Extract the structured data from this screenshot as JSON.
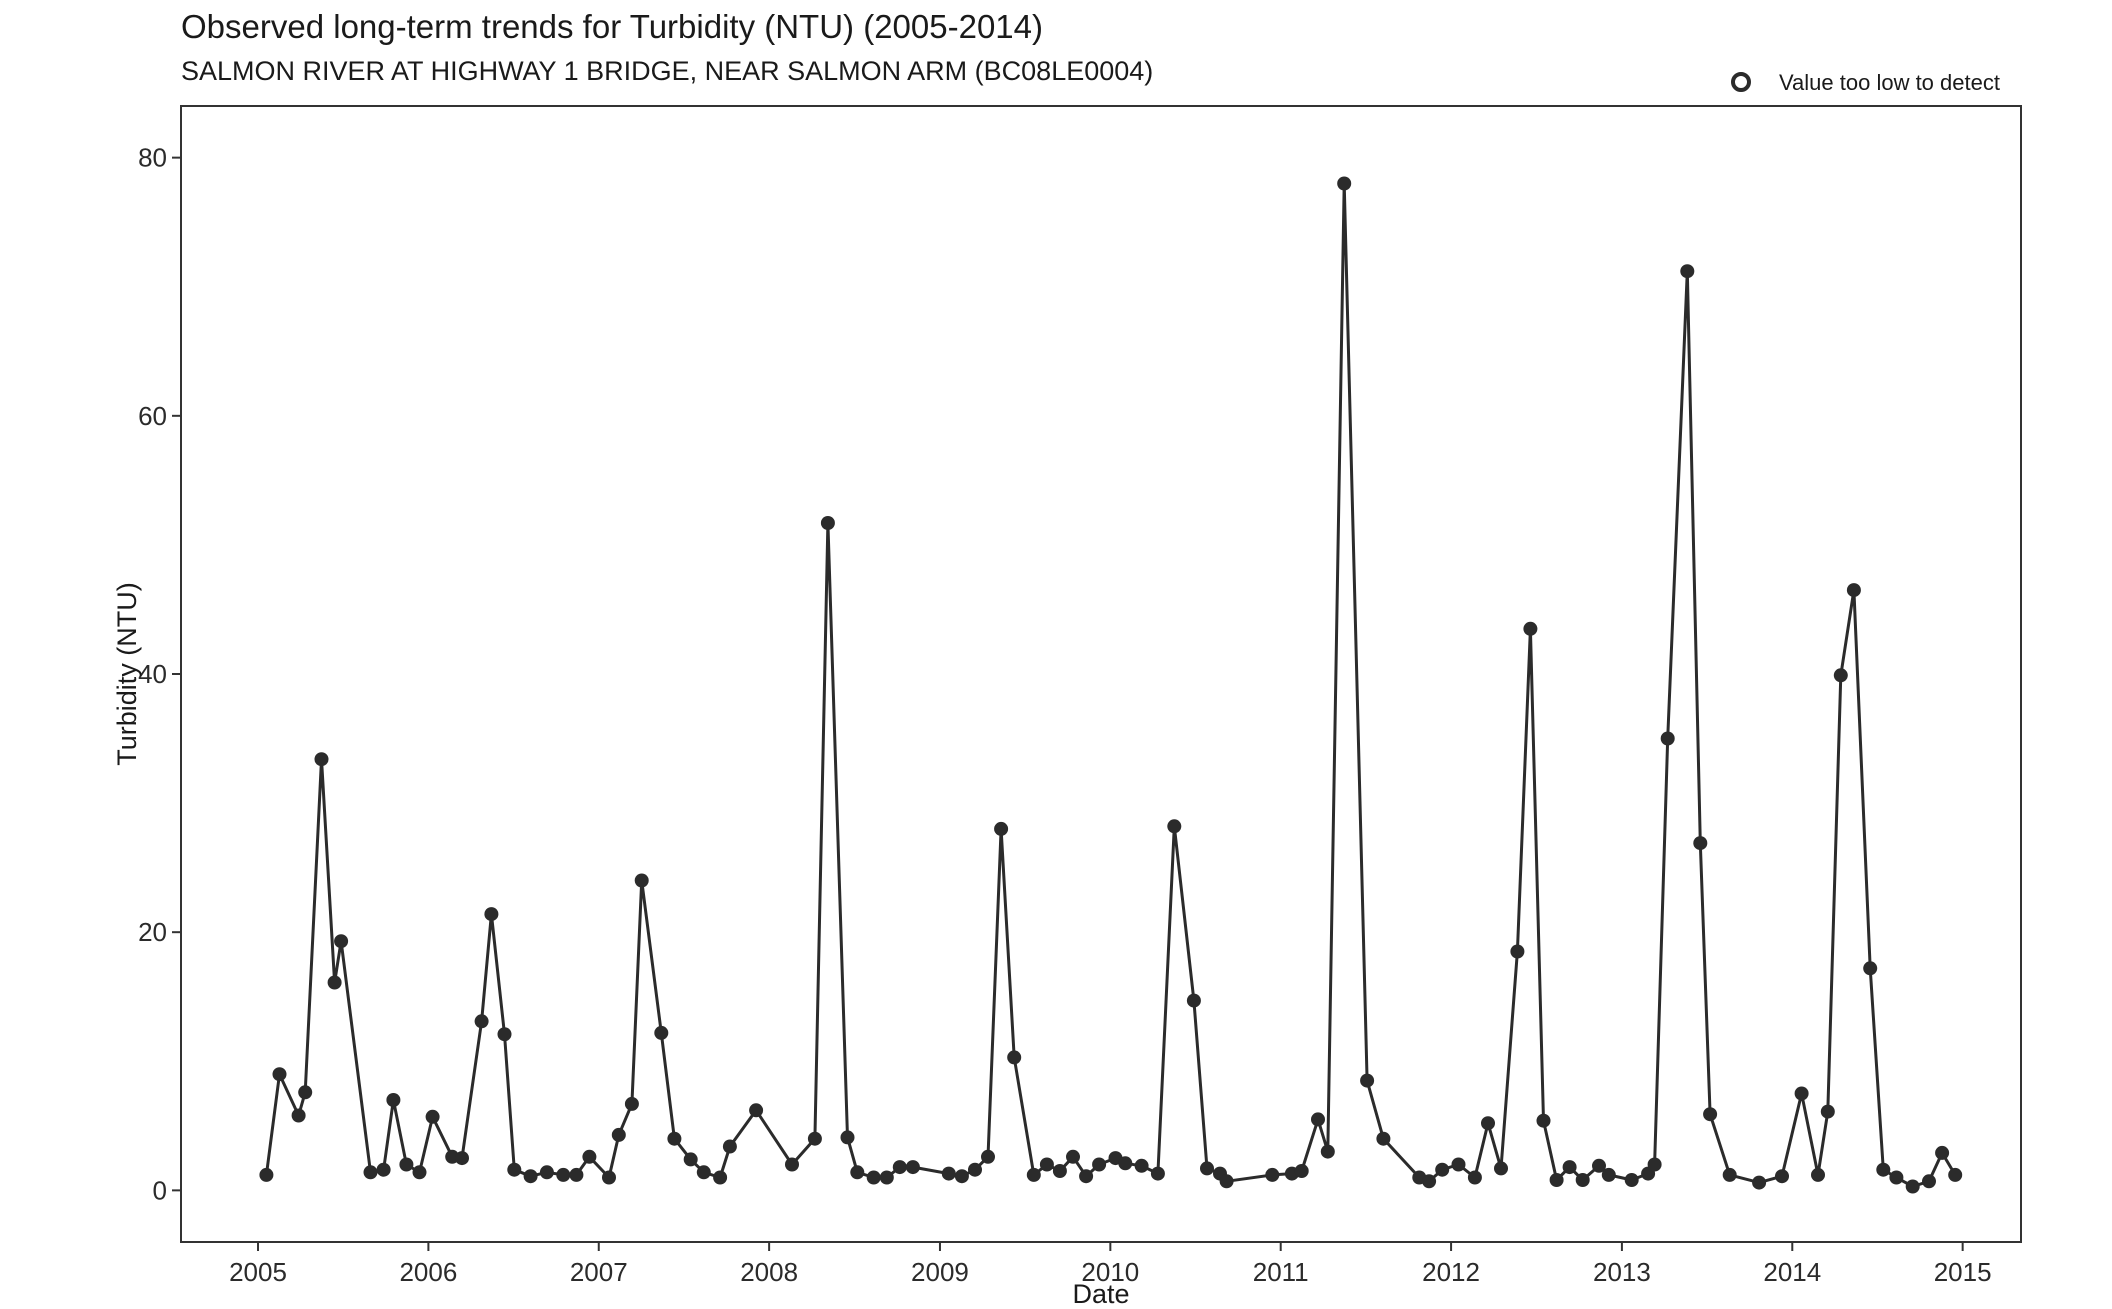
{
  "chart_data": {
    "type": "line",
    "title": "Observed long-term trends for Turbidity (NTU) (2005-2014)",
    "subtitle": "SALMON RIVER AT HIGHWAY 1 BRIDGE, NEAR SALMON ARM (BC08LE0004)",
    "xlabel": "Date",
    "ylabel": "Turbidity (NTU)",
    "xlim": [
      "2004-07-20",
      "2015-05-06"
    ],
    "ylim": [
      -4,
      84
    ],
    "x_ticks": [
      "2005",
      "2006",
      "2007",
      "2008",
      "2009",
      "2010",
      "2011",
      "2012",
      "2013",
      "2014",
      "2015"
    ],
    "y_ticks": [
      0,
      20,
      40,
      60,
      80
    ],
    "grid": false,
    "legend": {
      "position": "top-right",
      "entries": [
        {
          "marker": "open-circle",
          "label": "Value too low to detect"
        }
      ]
    },
    "colors": {
      "series": "#2b2b2b",
      "axis": "#333333"
    },
    "series": [
      {
        "points": [
          [
            "2005-01-19",
            1.2
          ],
          [
            "2005-02-16",
            9.0
          ],
          [
            "2005-03-29",
            5.8
          ],
          [
            "2005-04-12",
            7.6
          ],
          [
            "2005-05-17",
            33.4
          ],
          [
            "2005-06-14",
            16.1
          ],
          [
            "2005-06-28",
            19.3
          ],
          [
            "2005-08-30",
            1.4
          ],
          [
            "2005-09-27",
            1.6
          ],
          [
            "2005-10-18",
            7.0
          ],
          [
            "2005-11-15",
            2.0
          ],
          [
            "2005-12-13",
            1.4
          ],
          [
            "2006-01-10",
            5.7
          ],
          [
            "2006-02-21",
            2.6
          ],
          [
            "2006-03-14",
            2.5
          ],
          [
            "2006-04-25",
            13.1
          ],
          [
            "2006-05-16",
            21.4
          ],
          [
            "2006-06-13",
            12.1
          ],
          [
            "2006-07-04",
            1.6
          ],
          [
            "2006-08-08",
            1.1
          ],
          [
            "2006-09-12",
            1.4
          ],
          [
            "2006-10-17",
            1.2
          ],
          [
            "2006-11-14",
            1.2
          ],
          [
            "2006-12-12",
            2.6
          ],
          [
            "2007-01-23",
            1.0
          ],
          [
            "2007-02-13",
            4.3
          ],
          [
            "2007-03-13",
            6.7
          ],
          [
            "2007-04-03",
            24.0
          ],
          [
            "2007-05-15",
            12.2
          ],
          [
            "2007-06-12",
            4.0
          ],
          [
            "2007-07-17",
            2.4
          ],
          [
            "2007-08-14",
            1.4
          ],
          [
            "2007-09-18",
            1.0
          ],
          [
            "2007-10-09",
            3.4
          ],
          [
            "2007-12-04",
            6.2
          ],
          [
            "2008-02-19",
            2.0
          ],
          [
            "2008-04-08",
            4.0
          ],
          [
            "2008-05-06",
            51.7
          ],
          [
            "2008-06-17",
            4.1
          ],
          [
            "2008-07-08",
            1.4
          ],
          [
            "2008-08-12",
            1.0
          ],
          [
            "2008-09-09",
            1.0
          ],
          [
            "2008-10-07",
            1.8
          ],
          [
            "2008-11-04",
            1.8
          ],
          [
            "2009-01-20",
            1.3
          ],
          [
            "2009-02-17",
            1.1
          ],
          [
            "2009-03-17",
            1.6
          ],
          [
            "2009-04-14",
            2.6
          ],
          [
            "2009-05-12",
            28.0
          ],
          [
            "2009-06-09",
            10.3
          ],
          [
            "2009-07-21",
            1.2
          ],
          [
            "2009-08-18",
            2.0
          ],
          [
            "2009-09-15",
            1.5
          ],
          [
            "2009-10-13",
            2.6
          ],
          [
            "2009-11-10",
            1.1
          ],
          [
            "2009-12-08",
            2.0
          ],
          [
            "2010-01-12",
            2.5
          ],
          [
            "2010-02-02",
            2.1
          ],
          [
            "2010-03-09",
            1.9
          ],
          [
            "2010-04-13",
            1.3
          ],
          [
            "2010-05-18",
            28.2
          ],
          [
            "2010-06-29",
            14.7
          ],
          [
            "2010-07-27",
            1.7
          ],
          [
            "2010-08-24",
            1.3
          ],
          [
            "2010-09-07",
            0.7
          ],
          [
            "2010-12-14",
            1.2
          ],
          [
            "2011-01-25",
            1.3
          ],
          [
            "2011-02-15",
            1.5
          ],
          [
            "2011-03-22",
            5.5
          ],
          [
            "2011-04-12",
            3.0
          ],
          [
            "2011-05-17",
            78.0
          ],
          [
            "2011-07-05",
            8.5
          ],
          [
            "2011-08-09",
            4.0
          ],
          [
            "2011-10-25",
            1.0
          ],
          [
            "2011-11-15",
            0.7
          ],
          [
            "2011-12-13",
            1.6
          ],
          [
            "2012-01-17",
            2.0
          ],
          [
            "2012-02-21",
            1.0
          ],
          [
            "2012-03-20",
            5.2
          ],
          [
            "2012-04-17",
            1.7
          ],
          [
            "2012-05-22",
            18.5
          ],
          [
            "2012-06-19",
            43.5
          ],
          [
            "2012-07-17",
            5.4
          ],
          [
            "2012-08-14",
            0.8
          ],
          [
            "2012-09-11",
            1.8
          ],
          [
            "2012-10-09",
            0.8
          ],
          [
            "2012-11-13",
            1.9
          ],
          [
            "2012-12-04",
            1.2
          ],
          [
            "2013-01-22",
            0.8
          ],
          [
            "2013-02-26",
            1.3
          ],
          [
            "2013-03-12",
            2.0
          ],
          [
            "2013-04-09",
            35.0
          ],
          [
            "2013-05-21",
            71.2
          ],
          [
            "2013-06-18",
            26.9
          ],
          [
            "2013-07-09",
            5.9
          ],
          [
            "2013-08-20",
            1.2
          ],
          [
            "2013-10-22",
            0.6
          ],
          [
            "2013-12-10",
            1.1
          ],
          [
            "2014-01-21",
            7.5
          ],
          [
            "2014-02-25",
            1.2
          ],
          [
            "2014-03-18",
            6.1
          ],
          [
            "2014-04-15",
            39.9
          ],
          [
            "2014-05-13",
            46.5
          ],
          [
            "2014-06-17",
            17.2
          ],
          [
            "2014-07-15",
            1.6
          ],
          [
            "2014-08-12",
            1.0
          ],
          [
            "2014-09-16",
            0.3
          ],
          [
            "2014-10-21",
            0.7
          ],
          [
            "2014-11-18",
            2.9
          ],
          [
            "2014-12-16",
            1.2
          ]
        ]
      }
    ]
  }
}
